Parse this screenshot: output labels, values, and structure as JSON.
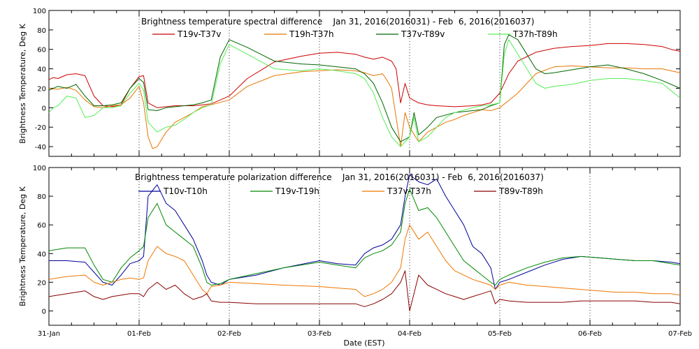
{
  "chart_data": [
    {
      "type": "line",
      "title": "Brightness temperature spectral difference    Jan 31, 2016(2016031) - Feb  6, 2016(2016037)",
      "ylabel": "Brightness Temperature, Deg K",
      "xlabel": "",
      "ylim": [
        -50,
        100
      ],
      "yticks": [
        -40,
        -20,
        0,
        20,
        40,
        60,
        80,
        100
      ],
      "xlim": [
        0,
        7
      ],
      "grid_vertical": true,
      "legend_placement": "top",
      "series": [
        {
          "name": "T19v-T37v",
          "color": "#cc0000",
          "x": [
            0,
            0.05,
            0.1,
            0.2,
            0.3,
            0.4,
            0.5,
            0.6,
            0.7,
            0.8,
            0.9,
            1.0,
            1.05,
            1.1,
            1.2,
            1.3,
            1.4,
            1.5,
            1.6,
            1.7,
            1.8,
            2.0,
            2.2,
            2.5,
            2.8,
            3.0,
            3.2,
            3.4,
            3.5,
            3.6,
            3.7,
            3.8,
            3.85,
            3.9,
            3.95,
            4.0,
            4.1,
            4.2,
            4.3,
            4.5,
            4.7,
            4.8,
            4.9,
            5.0,
            5.1,
            5.2,
            5.4,
            5.6,
            5.8,
            6.0,
            6.2,
            6.4,
            6.6,
            6.8,
            6.9,
            7.0
          ],
          "values": [
            29,
            31,
            30,
            34,
            35,
            33,
            12,
            2,
            1,
            3,
            20,
            32,
            33,
            5,
            0,
            1,
            2,
            2,
            2,
            3,
            4,
            12,
            30,
            47,
            53,
            56,
            57,
            55,
            52,
            50,
            52,
            48,
            40,
            5,
            25,
            10,
            5,
            3,
            2,
            1,
            2,
            3,
            5,
            15,
            35,
            48,
            57,
            61,
            63,
            64,
            66,
            66,
            65,
            63,
            60,
            58
          ]
        },
        {
          "name": "T19h-T37h",
          "color": "#e87500",
          "x": [
            0,
            0.1,
            0.2,
            0.3,
            0.4,
            0.5,
            0.6,
            0.7,
            0.8,
            0.9,
            1.0,
            1.05,
            1.1,
            1.15,
            1.2,
            1.3,
            1.4,
            1.5,
            1.6,
            1.7,
            1.8,
            2.0,
            2.2,
            2.5,
            2.8,
            3.0,
            3.2,
            3.4,
            3.5,
            3.6,
            3.7,
            3.75,
            3.8,
            3.85,
            3.9,
            3.95,
            4.0,
            4.1,
            4.2,
            4.3,
            4.4,
            4.5,
            4.6,
            4.7,
            4.8,
            4.9,
            5.0,
            5.2,
            5.4,
            5.6,
            5.8,
            6.0,
            6.2,
            6.4,
            6.6,
            6.8,
            7.0
          ],
          "values": [
            20,
            19,
            21,
            18,
            8,
            1,
            0,
            2,
            3,
            10,
            22,
            5,
            -30,
            -42,
            -40,
            -25,
            -15,
            -10,
            -5,
            1,
            3,
            8,
            22,
            33,
            37,
            38,
            39,
            38,
            36,
            33,
            35,
            28,
            20,
            -10,
            -40,
            -5,
            -20,
            -35,
            -25,
            -20,
            -15,
            -12,
            -8,
            -5,
            -2,
            -3,
            0,
            15,
            35,
            42,
            43,
            42,
            41,
            41,
            40,
            40,
            36
          ]
        },
        {
          "name": "T37v-T89v",
          "color": "#006600",
          "x": [
            0,
            0.1,
            0.2,
            0.3,
            0.4,
            0.5,
            0.6,
            0.7,
            0.8,
            0.9,
            1.0,
            1.05,
            1.1,
            1.2,
            1.3,
            1.4,
            1.5,
            1.6,
            1.7,
            1.8,
            1.9,
            2.0,
            2.2,
            2.5,
            2.8,
            3.0,
            3.2,
            3.4,
            3.5,
            3.6,
            3.7,
            3.8,
            3.9,
            4.0,
            4.05,
            4.1,
            4.2,
            4.3,
            4.5,
            4.7,
            4.8,
            4.9,
            5.0,
            5.05,
            5.1,
            5.2,
            5.3,
            5.4,
            5.5,
            5.6,
            5.8,
            6.0,
            6.2,
            6.4,
            6.6,
            6.8,
            7.0
          ],
          "values": [
            18,
            22,
            20,
            24,
            12,
            2,
            2,
            3,
            5,
            20,
            30,
            26,
            -2,
            -3,
            0,
            1,
            2,
            3,
            5,
            8,
            52,
            70,
            62,
            48,
            45,
            44,
            42,
            40,
            35,
            25,
            5,
            -20,
            -35,
            -30,
            -5,
            -28,
            -20,
            -10,
            -5,
            -3,
            -2,
            2,
            5,
            65,
            75,
            70,
            55,
            40,
            35,
            36,
            39,
            42,
            44,
            40,
            35,
            28,
            20
          ]
        },
        {
          "name": "T37h-T89h",
          "color": "#55ee55",
          "x": [
            0,
            0.05,
            0.1,
            0.2,
            0.3,
            0.4,
            0.5,
            0.6,
            0.7,
            0.8,
            0.9,
            1.0,
            1.05,
            1.1,
            1.2,
            1.3,
            1.4,
            1.5,
            1.6,
            1.7,
            1.8,
            1.9,
            2.0,
            2.2,
            2.5,
            2.8,
            3.0,
            3.2,
            3.4,
            3.5,
            3.6,
            3.7,
            3.8,
            3.9,
            4.0,
            4.05,
            4.1,
            4.2,
            4.3,
            4.4,
            4.5,
            4.7,
            4.8,
            4.9,
            5.0,
            5.05,
            5.1,
            5.2,
            5.3,
            5.4,
            5.5,
            5.6,
            5.8,
            6.0,
            6.2,
            6.4,
            6.6,
            6.8,
            7.0
          ],
          "values": [
            -5,
            0,
            2,
            12,
            10,
            -10,
            -8,
            0,
            0,
            2,
            15,
            25,
            18,
            -15,
            -25,
            -20,
            -18,
            -12,
            -5,
            0,
            3,
            45,
            65,
            55,
            40,
            38,
            40,
            38,
            35,
            30,
            15,
            -10,
            -30,
            -40,
            -30,
            -10,
            -35,
            -30,
            -20,
            -10,
            -5,
            0,
            2,
            3,
            5,
            55,
            70,
            55,
            40,
            25,
            20,
            22,
            24,
            28,
            30,
            30,
            28,
            25,
            10
          ]
        }
      ]
    },
    {
      "type": "line",
      "title": "Brightness temperature polarization difference    Jan 31, 2016(2016031) - Feb  6, 2016(2016037)",
      "ylabel": "Brightness Temperature, Deg K",
      "xlabel": "Date (EST)",
      "ylim": [
        -10,
        100
      ],
      "yticks": [
        0,
        20,
        40,
        60,
        80,
        100
      ],
      "xlim": [
        0,
        7
      ],
      "x_categories": [
        "31-Jan",
        "01-Feb",
        "02-Feb",
        "03-Feb",
        "04-Feb",
        "05-Feb",
        "06-Feb",
        "07-Feb"
      ],
      "grid_vertical": true,
      "legend_placement": "top",
      "series": [
        {
          "name": "T10v-T10h",
          "color": "#000099",
          "x": [
            0,
            0.2,
            0.4,
            0.5,
            0.6,
            0.7,
            0.8,
            0.9,
            1.0,
            1.05,
            1.1,
            1.2,
            1.3,
            1.4,
            1.5,
            1.6,
            1.7,
            1.75,
            1.8,
            1.9,
            2.0,
            2.3,
            2.6,
            3.0,
            3.2,
            3.4,
            3.5,
            3.6,
            3.7,
            3.8,
            3.9,
            3.95,
            4.0,
            4.1,
            4.2,
            4.3,
            4.4,
            4.5,
            4.6,
            4.7,
            4.8,
            4.9,
            4.95,
            5.0,
            5.1,
            5.3,
            5.5,
            5.7,
            5.9,
            6.1,
            6.3,
            6.5,
            6.7,
            6.9,
            7.0
          ],
          "values": [
            35,
            35,
            34,
            27,
            20,
            18,
            25,
            33,
            35,
            38,
            80,
            88,
            75,
            70,
            60,
            50,
            35,
            25,
            20,
            18,
            22,
            25,
            30,
            35,
            33,
            32,
            40,
            44,
            46,
            50,
            60,
            80,
            95,
            90,
            88,
            92,
            80,
            70,
            60,
            45,
            40,
            30,
            15,
            20,
            22,
            27,
            32,
            36,
            38,
            37,
            36,
            35,
            35,
            34,
            33
          ]
        },
        {
          "name": "T19v-T19h",
          "color": "#008800",
          "x": [
            0,
            0.2,
            0.4,
            0.5,
            0.6,
            0.7,
            0.8,
            0.9,
            1.0,
            1.05,
            1.1,
            1.2,
            1.3,
            1.4,
            1.5,
            1.6,
            1.7,
            1.75,
            1.8,
            1.9,
            2.0,
            2.3,
            2.6,
            3.0,
            3.2,
            3.4,
            3.5,
            3.6,
            3.7,
            3.8,
            3.9,
            3.95,
            4.0,
            4.1,
            4.2,
            4.3,
            4.4,
            4.5,
            4.6,
            4.7,
            4.8,
            4.9,
            4.95,
            5.0,
            5.1,
            5.3,
            5.5,
            5.7,
            5.9,
            6.1,
            6.3,
            6.5,
            6.7,
            6.9,
            7.0
          ],
          "values": [
            42,
            44,
            44,
            32,
            22,
            20,
            30,
            37,
            42,
            45,
            65,
            75,
            60,
            55,
            50,
            45,
            30,
            20,
            18,
            19,
            22,
            26,
            30,
            34,
            32,
            30,
            37,
            40,
            42,
            46,
            55,
            75,
            85,
            70,
            72,
            65,
            55,
            45,
            35,
            30,
            25,
            20,
            18,
            22,
            25,
            30,
            34,
            37,
            38,
            37,
            36,
            35,
            35,
            33,
            32
          ]
        },
        {
          "name": "T37v-T37h",
          "color": "#ee7700",
          "x": [
            0,
            0.2,
            0.4,
            0.5,
            0.6,
            0.7,
            0.8,
            0.9,
            1.0,
            1.05,
            1.1,
            1.2,
            1.3,
            1.4,
            1.5,
            1.6,
            1.7,
            1.75,
            1.8,
            1.9,
            2.0,
            2.3,
            2.6,
            3.0,
            3.2,
            3.4,
            3.5,
            3.6,
            3.7,
            3.8,
            3.9,
            3.95,
            4.0,
            4.1,
            4.2,
            4.3,
            4.4,
            4.5,
            4.6,
            4.7,
            4.8,
            4.9,
            4.95,
            5.0,
            5.1,
            5.3,
            5.5,
            5.7,
            5.9,
            6.1,
            6.3,
            6.5,
            6.7,
            6.9,
            7.0
          ],
          "values": [
            22,
            24,
            25,
            20,
            18,
            20,
            22,
            23,
            22,
            23,
            35,
            45,
            40,
            38,
            35,
            25,
            15,
            12,
            17,
            18,
            20,
            19,
            18,
            17,
            16,
            15,
            10,
            12,
            15,
            20,
            30,
            50,
            60,
            50,
            55,
            45,
            35,
            28,
            25,
            22,
            20,
            18,
            15,
            18,
            20,
            18,
            17,
            16,
            15,
            14,
            13,
            13,
            12,
            12,
            11
          ]
        },
        {
          "name": "T89v-T89h",
          "color": "#880000",
          "x": [
            0,
            0.2,
            0.4,
            0.5,
            0.6,
            0.7,
            0.8,
            0.9,
            1.0,
            1.05,
            1.1,
            1.2,
            1.3,
            1.4,
            1.5,
            1.6,
            1.7,
            1.75,
            1.8,
            1.9,
            2.0,
            2.3,
            2.6,
            3.0,
            3.2,
            3.4,
            3.5,
            3.6,
            3.7,
            3.8,
            3.9,
            3.95,
            4.0,
            4.1,
            4.2,
            4.3,
            4.4,
            4.5,
            4.6,
            4.7,
            4.8,
            4.9,
            4.95,
            5.0,
            5.1,
            5.3,
            5.5,
            5.7,
            5.9,
            6.1,
            6.3,
            6.5,
            6.7,
            6.9,
            7.0
          ],
          "values": [
            10,
            12,
            14,
            10,
            8,
            10,
            11,
            12,
            12,
            10,
            15,
            20,
            15,
            18,
            12,
            8,
            10,
            12,
            7,
            6,
            6,
            5,
            5,
            5,
            5,
            5,
            3,
            5,
            8,
            12,
            20,
            28,
            0,
            25,
            18,
            15,
            12,
            10,
            8,
            10,
            12,
            14,
            5,
            8,
            7,
            6,
            6,
            6,
            7,
            7,
            7,
            7,
            6,
            6,
            5
          ]
        }
      ]
    }
  ]
}
